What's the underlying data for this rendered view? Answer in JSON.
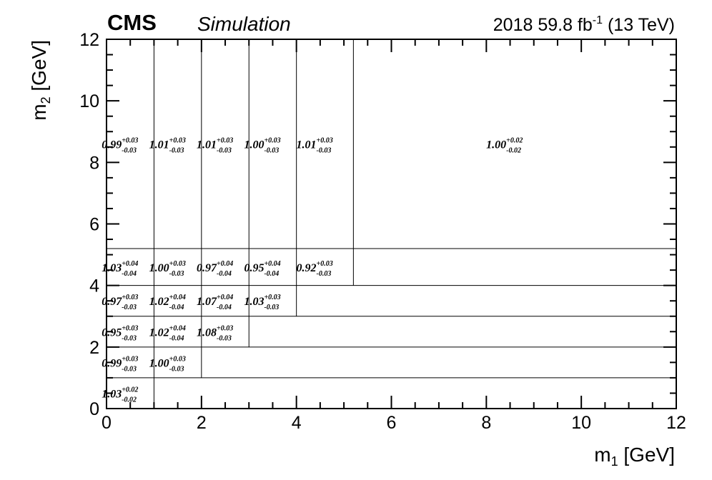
{
  "chart_data": {
    "type": "heatmap",
    "header": {
      "experiment": "CMS",
      "tag": "Simulation",
      "lumi_main": "2018 59.8 fb",
      "lumi_sup": "-1",
      "lumi_tail": " (13 TeV)"
    },
    "xlabel": {
      "main": "m",
      "sub": "1",
      "tail": " [GeV]"
    },
    "ylabel": {
      "main": "m",
      "sub": "2",
      "tail": " [GeV]"
    },
    "xlim": [
      0,
      12
    ],
    "ylim": [
      0,
      12
    ],
    "x_ticks": [
      "0",
      "2",
      "4",
      "6",
      "8",
      "10",
      "12"
    ],
    "y_ticks": [
      "0",
      "2",
      "4",
      "6",
      "8",
      "10",
      "12"
    ],
    "x_bin_edges": [
      0,
      1,
      2,
      3,
      4,
      5.2,
      12
    ],
    "y_bin_edges": [
      0,
      1,
      2,
      3,
      4,
      5.2,
      12
    ],
    "cells": [
      {
        "xbin": 0,
        "ybin": 0,
        "value": "1.03",
        "up": "+0.02",
        "down": "-0.02"
      },
      {
        "xbin": 0,
        "ybin": 1,
        "value": "0.99",
        "up": "+0.03",
        "down": "-0.03"
      },
      {
        "xbin": 1,
        "ybin": 1,
        "value": "1.00",
        "up": "+0.03",
        "down": "-0.03"
      },
      {
        "xbin": 0,
        "ybin": 2,
        "value": "0.95",
        "up": "+0.03",
        "down": "-0.03"
      },
      {
        "xbin": 1,
        "ybin": 2,
        "value": "1.02",
        "up": "+0.04",
        "down": "-0.04"
      },
      {
        "xbin": 2,
        "ybin": 2,
        "value": "1.08",
        "up": "+0.03",
        "down": "-0.03"
      },
      {
        "xbin": 0,
        "ybin": 3,
        "value": "0.97",
        "up": "+0.03",
        "down": "-0.03"
      },
      {
        "xbin": 1,
        "ybin": 3,
        "value": "1.02",
        "up": "+0.04",
        "down": "-0.04"
      },
      {
        "xbin": 2,
        "ybin": 3,
        "value": "1.07",
        "up": "+0.04",
        "down": "-0.04"
      },
      {
        "xbin": 3,
        "ybin": 3,
        "value": "1.03",
        "up": "+0.03",
        "down": "-0.03"
      },
      {
        "xbin": 0,
        "ybin": 4,
        "value": "1.03",
        "up": "+0.04",
        "down": "-0.04"
      },
      {
        "xbin": 1,
        "ybin": 4,
        "value": "1.00",
        "up": "+0.03",
        "down": "-0.03"
      },
      {
        "xbin": 2,
        "ybin": 4,
        "value": "0.97",
        "up": "+0.04",
        "down": "-0.04"
      },
      {
        "xbin": 3,
        "ybin": 4,
        "value": "0.95",
        "up": "+0.04",
        "down": "-0.04"
      },
      {
        "xbin": 4,
        "ybin": 4,
        "value": "0.92",
        "up": "+0.03",
        "down": "-0.03"
      },
      {
        "xbin": 0,
        "ybin": 5,
        "value": "0.99",
        "up": "+0.03",
        "down": "-0.03"
      },
      {
        "xbin": 1,
        "ybin": 5,
        "value": "1.01",
        "up": "+0.03",
        "down": "-0.03"
      },
      {
        "xbin": 2,
        "ybin": 5,
        "value": "1.01",
        "up": "+0.03",
        "down": "-0.03"
      },
      {
        "xbin": 3,
        "ybin": 5,
        "value": "1.00",
        "up": "+0.03",
        "down": "-0.03"
      },
      {
        "xbin": 4,
        "ybin": 5,
        "value": "1.01",
        "up": "+0.03",
        "down": "-0.03"
      },
      {
        "xbin": 5,
        "ybin": 5,
        "value": "1.00",
        "up": "+0.02",
        "down": "-0.02"
      }
    ],
    "grid": false
  }
}
